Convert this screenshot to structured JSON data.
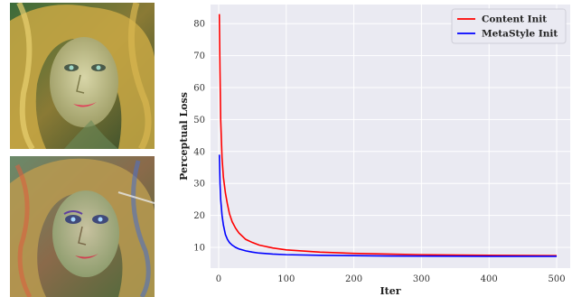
{
  "images": [
    {
      "name": "stylized-portrait-content-init"
    },
    {
      "name": "stylized-portrait-metastyle-init"
    }
  ],
  "colors": {
    "content_init": "#ff0000",
    "metastyle_init": "#0000ff",
    "plot_background": "#eaeaf2",
    "grid": "#ffffff"
  },
  "chart_data": {
    "type": "line",
    "xlabel": "Iter",
    "ylabel": "Perceptual Loss",
    "xlim": [
      -12,
      520
    ],
    "ylim": [
      3.5,
      86
    ],
    "xticks": [
      0,
      100,
      200,
      300,
      400,
      500
    ],
    "yticks": [
      10,
      20,
      30,
      40,
      50,
      60,
      70,
      80
    ],
    "grid": true,
    "legend_position": "top-right",
    "series": [
      {
        "name": "Content Init",
        "color": "#ff0000",
        "x": [
          1,
          2,
          3,
          5,
          7,
          10,
          13,
          16,
          20,
          25,
          30,
          40,
          50,
          60,
          80,
          100,
          150,
          200,
          250,
          300,
          400,
          500
        ],
        "y": [
          83,
          65,
          50,
          38,
          32,
          27,
          23.5,
          20.5,
          18,
          16,
          14.5,
          12.5,
          11.5,
          10.7,
          9.8,
          9.2,
          8.5,
          8.1,
          7.9,
          7.7,
          7.5,
          7.4
        ]
      },
      {
        "name": "MetaStyle Init",
        "color": "#0000ff",
        "x": [
          1,
          2,
          3,
          5,
          7,
          10,
          13,
          16,
          20,
          25,
          30,
          40,
          50,
          60,
          80,
          100,
          150,
          200,
          250,
          300,
          400,
          500
        ],
        "y": [
          39,
          30,
          25,
          20,
          17,
          14,
          12.5,
          11.5,
          10.7,
          10,
          9.5,
          8.9,
          8.5,
          8.2,
          7.9,
          7.7,
          7.5,
          7.4,
          7.3,
          7.25,
          7.2,
          7.2
        ]
      }
    ]
  }
}
